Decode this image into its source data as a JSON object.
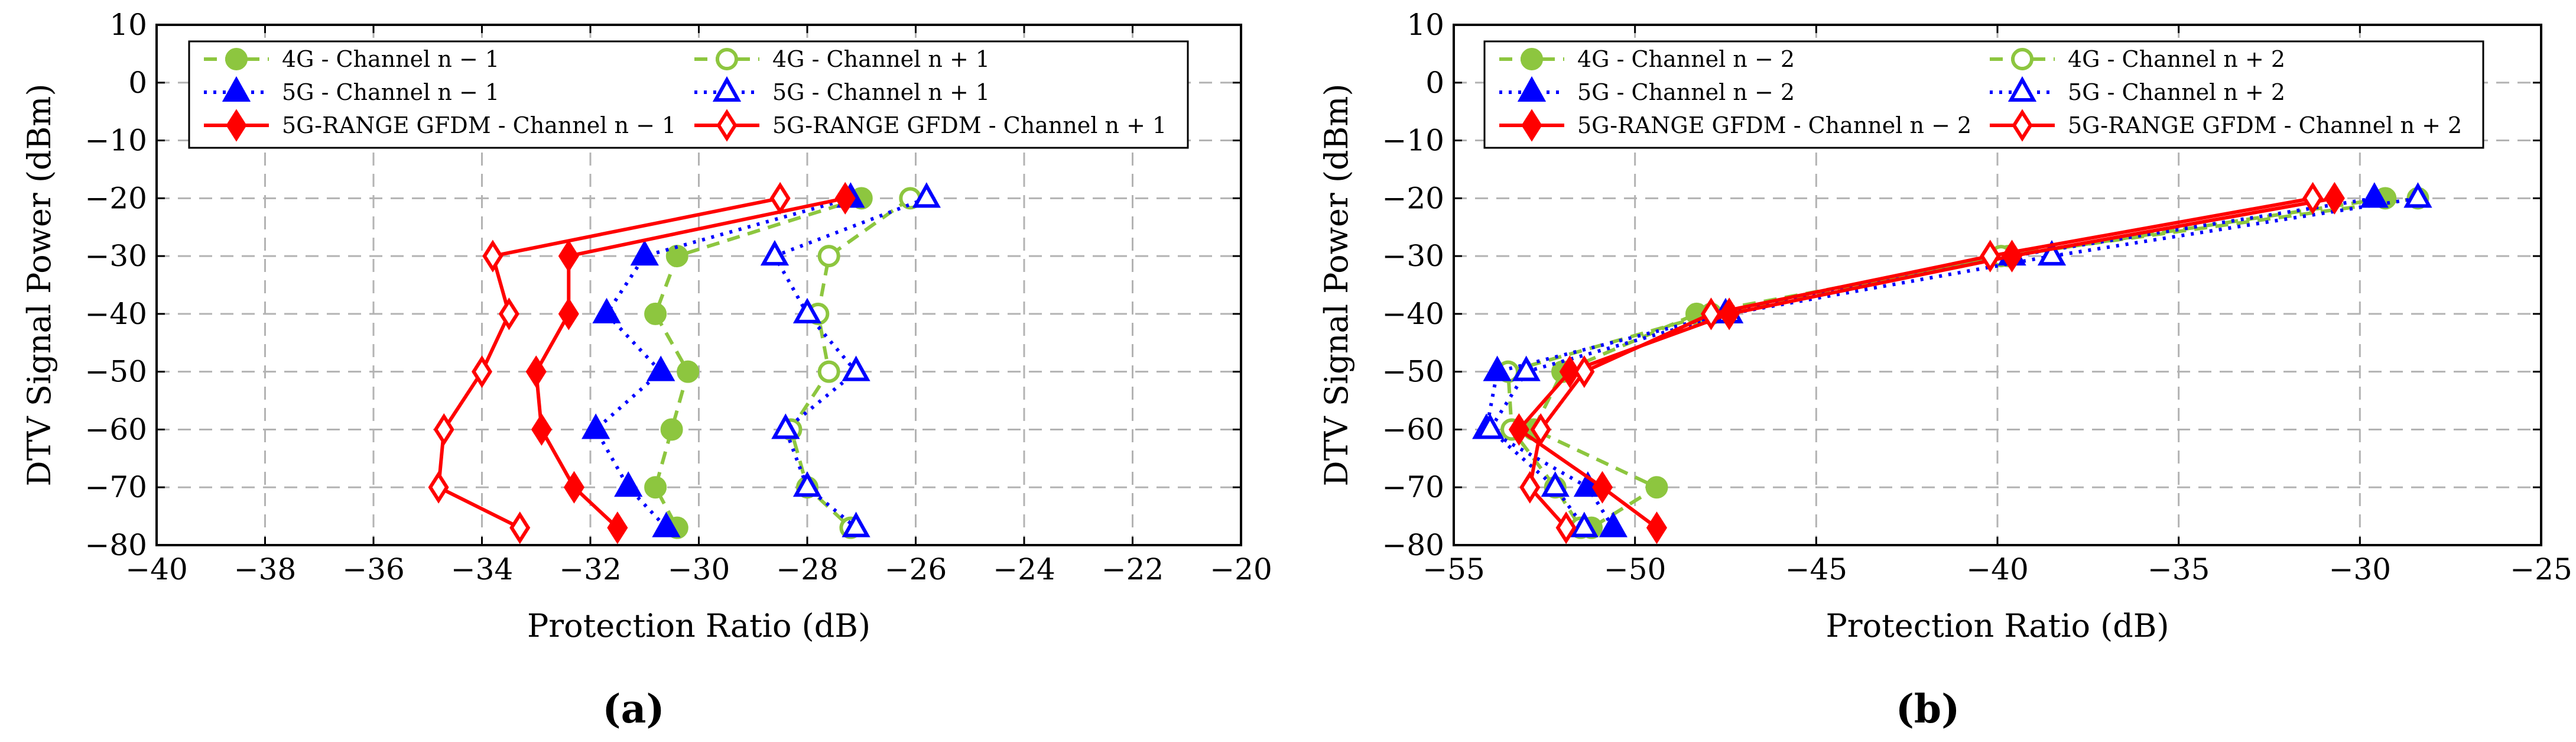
{
  "chart_data": [
    {
      "type": "line",
      "panel_label": "(a)",
      "xlabel": "Protection Ratio (dB)",
      "ylabel": "DTV Signal Power (dBm)",
      "xlim": [
        -40,
        -20
      ],
      "ylim": [
        -80,
        10
      ],
      "x_ticks": [
        "−40",
        "−38",
        "−36",
        "−34",
        "−32",
        "−30",
        "−28",
        "−26",
        "−24",
        "−22",
        "−20"
      ],
      "y_ticks": [
        "10",
        "0",
        "−10",
        "−20",
        "−30",
        "−40",
        "−50",
        "−60",
        "−70",
        "−80"
      ],
      "grid": true,
      "legend_position": "top",
      "series": [
        {
          "name": "4G - Channel n − 1",
          "color": "#8dc63f",
          "style": "dashed",
          "marker": "circle",
          "filled": true,
          "x": [
            -27.0,
            -30.4,
            -30.8,
            -30.2,
            -30.5,
            -30.8,
            -30.4
          ],
          "y": [
            -20,
            -30,
            -40,
            -50,
            -60,
            -70,
            -77
          ]
        },
        {
          "name": "4G - Channel n + 1",
          "color": "#8dc63f",
          "style": "dashed",
          "marker": "circle",
          "filled": false,
          "x": [
            -26.1,
            -27.6,
            -27.8,
            -27.6,
            -28.3,
            -28.0,
            -27.2
          ],
          "y": [
            -20,
            -30,
            -40,
            -50,
            -60,
            -70,
            -77
          ]
        },
        {
          "name": "5G - Channel n − 1",
          "color": "#0000ff",
          "style": "dotted",
          "marker": "triangle",
          "filled": true,
          "x": [
            -27.2,
            -31.0,
            -31.7,
            -30.7,
            -31.9,
            -31.3,
            -30.6
          ],
          "y": [
            -20,
            -30,
            -40,
            -50,
            -60,
            -70,
            -77
          ]
        },
        {
          "name": "5G - Channel n + 1",
          "color": "#0000ff",
          "style": "dotted",
          "marker": "triangle",
          "filled": false,
          "x": [
            -25.8,
            -28.6,
            -28.0,
            -27.1,
            -28.4,
            -28.0,
            -27.1
          ],
          "y": [
            -20,
            -30,
            -40,
            -50,
            -60,
            -70,
            -77
          ]
        },
        {
          "name": "5G-RANGE GFDM - Channel n − 1",
          "color": "#ff0000",
          "style": "solid",
          "marker": "diamond",
          "filled": true,
          "x": [
            -27.3,
            -32.4,
            -32.4,
            -33.0,
            -32.9,
            -32.3,
            -31.5
          ],
          "y": [
            -20,
            -30,
            -40,
            -50,
            -60,
            -70,
            -77
          ]
        },
        {
          "name": "5G-RANGE GFDM - Channel n + 1",
          "color": "#ff0000",
          "style": "solid",
          "marker": "diamond",
          "filled": false,
          "x": [
            -28.5,
            -33.8,
            -33.5,
            -34.0,
            -34.7,
            -34.8,
            -33.3
          ],
          "y": [
            -20,
            -30,
            -40,
            -50,
            -60,
            -70,
            -77
          ]
        }
      ]
    },
    {
      "type": "line",
      "panel_label": "(b)",
      "xlabel": "Protection Ratio (dB)",
      "ylabel": "DTV Signal Power (dBm)",
      "xlim": [
        -55,
        -25
      ],
      "ylim": [
        -80,
        10
      ],
      "x_ticks": [
        "−55",
        "−50",
        "−45",
        "−40",
        "−35",
        "−30",
        "−25"
      ],
      "y_ticks": [
        "10",
        "0",
        "−10",
        "−20",
        "−30",
        "−40",
        "−50",
        "−60",
        "−70",
        "−80"
      ],
      "grid": true,
      "legend_position": "top",
      "series": [
        {
          "name": "4G - Channel n − 2",
          "color": "#8dc63f",
          "style": "dashed",
          "marker": "circle",
          "filled": true,
          "x": [
            -29.3,
            -39.7,
            -48.3,
            -52.0,
            -52.8,
            -49.4,
            -51.2
          ],
          "y": [
            -20,
            -30,
            -40,
            -50,
            -60,
            -70,
            -77
          ]
        },
        {
          "name": "4G - Channel n + 2",
          "color": "#8dc63f",
          "style": "dashed",
          "marker": "circle",
          "filled": false,
          "x": [
            -28.4,
            -39.9,
            -47.9,
            -53.5,
            -53.4,
            -52.2,
            -51.5
          ],
          "y": [
            -20,
            -30,
            -40,
            -50,
            -60,
            -70,
            -77
          ]
        },
        {
          "name": "5G - Channel n − 2",
          "color": "#0000ff",
          "style": "dotted",
          "marker": "triangle",
          "filled": true,
          "x": [
            -29.6,
            -39.6,
            -47.5,
            -53.8,
            -54.1,
            -51.3,
            -50.6
          ],
          "y": [
            -20,
            -30,
            -40,
            -50,
            -60,
            -70,
            -77
          ]
        },
        {
          "name": "5G - Channel n + 2",
          "color": "#0000ff",
          "style": "dotted",
          "marker": "triangle",
          "filled": false,
          "x": [
            -28.4,
            -38.5,
            -47.4,
            -53.0,
            -54.0,
            -52.2,
            -51.4
          ],
          "y": [
            -20,
            -30,
            -40,
            -50,
            -60,
            -70,
            -77
          ]
        },
        {
          "name": "5G-RANGE GFDM - Channel n − 2",
          "color": "#ff0000",
          "style": "solid",
          "marker": "diamond",
          "filled": true,
          "x": [
            -30.7,
            -39.6,
            -47.4,
            -51.8,
            -53.2,
            -50.9,
            -49.4
          ],
          "y": [
            -20,
            -30,
            -40,
            -50,
            -60,
            -70,
            -77
          ]
        },
        {
          "name": "5G-RANGE GFDM - Channel n + 2",
          "color": "#ff0000",
          "style": "solid",
          "marker": "diamond",
          "filled": false,
          "x": [
            -31.3,
            -40.2,
            -47.9,
            -51.4,
            -52.6,
            -52.9,
            -51.9
          ],
          "y": [
            -20,
            -30,
            -40,
            -50,
            -60,
            -70,
            -77
          ]
        }
      ]
    }
  ]
}
